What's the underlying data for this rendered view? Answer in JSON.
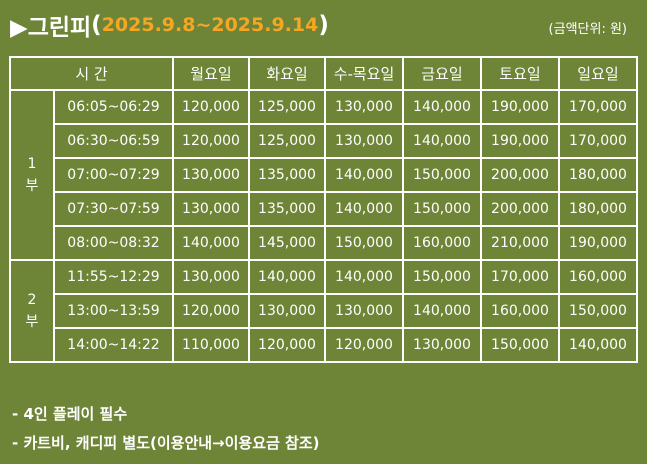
{
  "title": {
    "prefix": "▶그린피",
    "open_paren": "(",
    "date_range": "2025.9.8~2025.9.14",
    "close_paren": ")"
  },
  "unit_note": "(금액단위: 원)",
  "table": {
    "time_header": "시 간",
    "day_headers": [
      "월요일",
      "화요일",
      "수-목요일",
      "금요일",
      "토요일",
      "일요일"
    ],
    "parts": [
      {
        "label_top": "1",
        "label_bottom": "부",
        "rows": [
          {
            "time": "06:05~06:29",
            "prices": [
              "120,000",
              "125,000",
              "130,000",
              "140,000",
              "190,000",
              "170,000"
            ]
          },
          {
            "time": "06:30~06:59",
            "prices": [
              "120,000",
              "125,000",
              "130,000",
              "140,000",
              "190,000",
              "170,000"
            ]
          },
          {
            "time": "07:00~07:29",
            "prices": [
              "130,000",
              "135,000",
              "140,000",
              "150,000",
              "200,000",
              "180,000"
            ]
          },
          {
            "time": "07:30~07:59",
            "prices": [
              "130,000",
              "135,000",
              "140,000",
              "150,000",
              "200,000",
              "180,000"
            ]
          },
          {
            "time": "08:00~08:32",
            "prices": [
              "140,000",
              "145,000",
              "150,000",
              "160,000",
              "210,000",
              "190,000"
            ]
          }
        ]
      },
      {
        "label_top": "2",
        "label_bottom": "부",
        "rows": [
          {
            "time": "11:55~12:29",
            "prices": [
              "130,000",
              "140,000",
              "140,000",
              "150,000",
              "170,000",
              "160,000"
            ]
          },
          {
            "time": "13:00~13:59",
            "prices": [
              "120,000",
              "130,000",
              "130,000",
              "140,000",
              "160,000",
              "150,000"
            ]
          },
          {
            "time": "14:00~14:22",
            "prices": [
              "110,000",
              "120,000",
              "120,000",
              "130,000",
              "150,000",
              "140,000"
            ]
          }
        ]
      }
    ]
  },
  "notes": [
    "- 4인 플레이 필수",
    "- 카트비, 캐디피 별도(이용안내→이용요금 참조)"
  ]
}
